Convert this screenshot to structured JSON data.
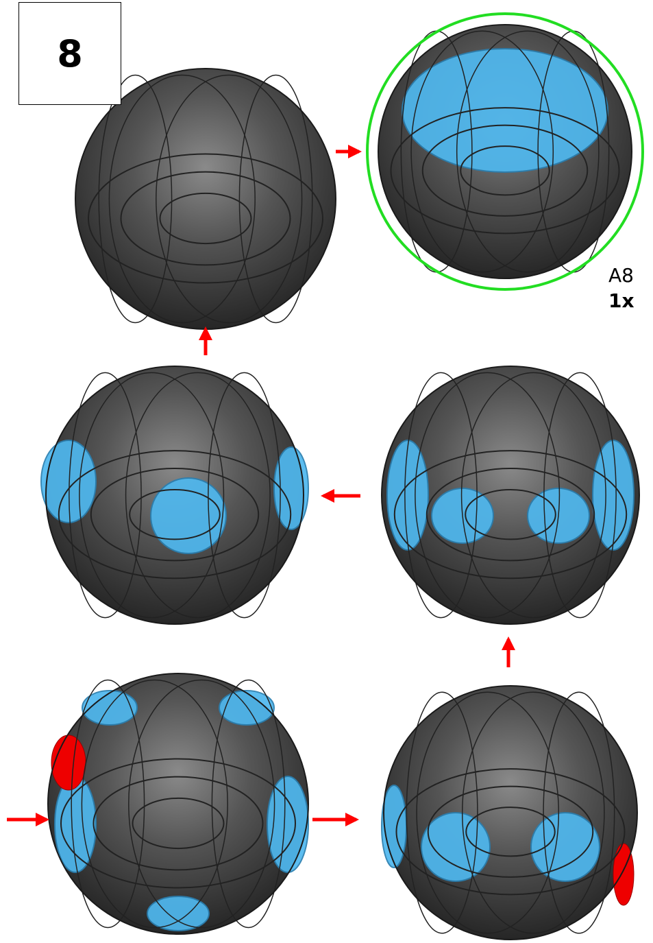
{
  "step": {
    "number": "8"
  },
  "part": {
    "label": "A8",
    "quantity": "1x"
  }
}
